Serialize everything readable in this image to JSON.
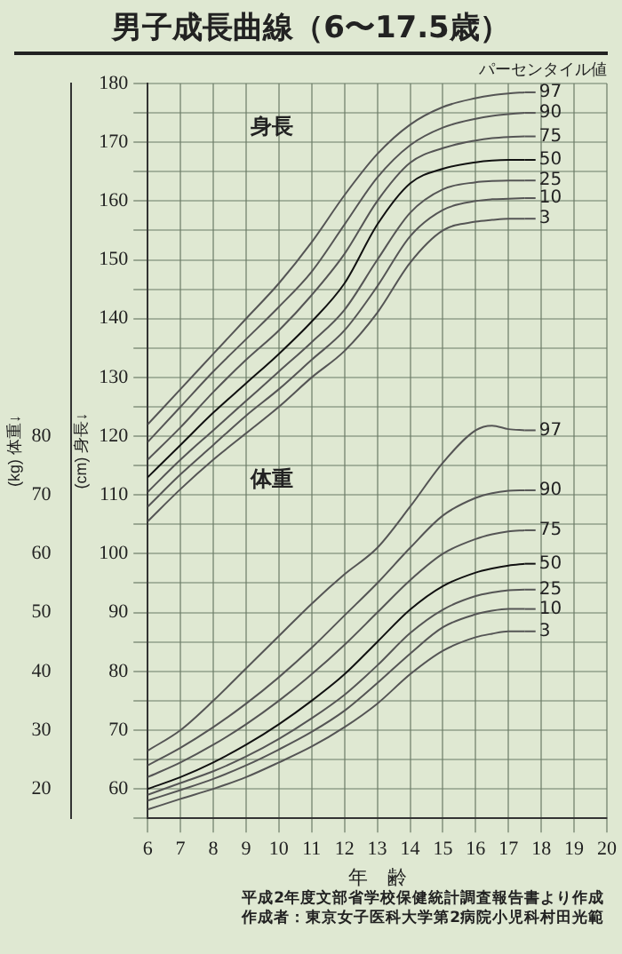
{
  "chart_data": {
    "type": "line",
    "title": "男子成長曲線（6〜17.5歳）",
    "xlabel": "年　齢",
    "ylabel": "(cm) 身長↓",
    "y2label": "(kg) 体重↓",
    "legend_title": "パーセンタイル値",
    "x": [
      6,
      7,
      8,
      9,
      10,
      11,
      12,
      13,
      14,
      15,
      16,
      16.5,
      17,
      17.5
    ],
    "xlim": [
      6,
      20
    ],
    "xticks": [
      6,
      7,
      8,
      9,
      10,
      11,
      12,
      13,
      14,
      15,
      16,
      17,
      18,
      19,
      20
    ],
    "ylim": [
      55,
      180
    ],
    "yticks": [
      {
        "value": 55,
        "label": null
      },
      60,
      {
        "value": 65,
        "label": null
      },
      70,
      {
        "value": 75,
        "label": null
      },
      80,
      {
        "value": 85,
        "label": null
      },
      90,
      {
        "value": 95,
        "label": null
      },
      100,
      {
        "value": 105,
        "label": null
      },
      110,
      {
        "value": 115,
        "label": null
      },
      120,
      {
        "value": 125,
        "label": null
      },
      130,
      {
        "value": 135,
        "label": null
      },
      140,
      {
        "value": 145,
        "label": null
      },
      150,
      {
        "value": 155,
        "label": null
      },
      160,
      {
        "value": 165,
        "label": null
      },
      170,
      {
        "value": 175,
        "label": null
      },
      180
    ],
    "y2lim": [
      15,
      140
    ],
    "y2ticks": [
      20,
      30,
      40,
      50,
      60,
      70,
      80
    ],
    "grid": true,
    "legend": "right",
    "marker": "none",
    "line_style": "solid",
    "series": [
      {
        "name": "97",
        "color": "#555555",
        "values": [
          122,
          128,
          134,
          140,
          146,
          153,
          161,
          168,
          173,
          176,
          177.5,
          178,
          178.3,
          178.5
        ]
      },
      {
        "name": "90",
        "color": "#555555",
        "values": [
          119,
          125,
          131,
          136.5,
          142,
          148,
          156,
          164,
          169.5,
          172.5,
          174,
          174.5,
          174.8,
          175
        ]
      },
      {
        "name": "75",
        "color": "#555555",
        "values": [
          116,
          121.5,
          127.5,
          133,
          138,
          144,
          151,
          160,
          166.5,
          169,
          170.3,
          170.7,
          170.9,
          171
        ]
      },
      {
        "name": "50",
        "color": "#111111",
        "values": [
          113,
          118.5,
          124,
          129,
          134,
          139.5,
          146,
          156,
          163,
          165.5,
          166.6,
          166.9,
          167,
          167
        ]
      },
      {
        "name": "25",
        "color": "#555555",
        "values": [
          110.5,
          116,
          121,
          126,
          131,
          136,
          141.5,
          150,
          158,
          162,
          163.2,
          163.4,
          163.5,
          163.5
        ]
      },
      {
        "name": "10",
        "color": "#555555",
        "values": [
          108,
          113.5,
          118.5,
          123.5,
          128,
          133,
          138,
          145.5,
          154,
          158.5,
          160,
          160.3,
          160.4,
          160.5
        ]
      },
      {
        "name": "3",
        "color": "#555555",
        "values": [
          105.5,
          111,
          116,
          120.5,
          125,
          130,
          134.5,
          141,
          149.5,
          155,
          156.5,
          156.8,
          157,
          157
        ]
      },
      {
        "name": "97",
        "color": "#555555",
        "axis": "y2",
        "values": [
          26.5,
          30,
          35,
          40.5,
          46,
          51.5,
          56.5,
          61,
          68,
          75.5,
          81,
          81.8,
          81.2,
          81
        ]
      },
      {
        "name": "90",
        "color": "#555555",
        "axis": "y2",
        "values": [
          24,
          27,
          30.5,
          34.5,
          39,
          44,
          49.5,
          55,
          61,
          66.5,
          69.5,
          70.3,
          70.7,
          70.8
        ]
      },
      {
        "name": "75",
        "color": "#555555",
        "axis": "y2",
        "values": [
          22,
          24.5,
          27.5,
          31,
          35,
          39.5,
          44.5,
          50,
          55.5,
          60,
          62.5,
          63.3,
          63.8,
          64
        ]
      },
      {
        "name": "50",
        "color": "#111111",
        "axis": "y2",
        "values": [
          20,
          22,
          24.5,
          27.5,
          31,
          35,
          39.5,
          45,
          50.5,
          54.5,
          56.8,
          57.5,
          58,
          58.3
        ]
      },
      {
        "name": "25",
        "color": "#555555",
        "axis": "y2",
        "values": [
          19,
          21,
          23,
          25.5,
          28.5,
          32,
          36,
          41,
          46.5,
          50.5,
          52.8,
          53.4,
          53.8,
          53.9
        ]
      },
      {
        "name": "10",
        "color": "#555555",
        "axis": "y2",
        "values": [
          18,
          19.8,
          21.7,
          24,
          26.7,
          29.7,
          33.3,
          38,
          43,
          47.5,
          49.7,
          50.3,
          50.6,
          50.6
        ]
      },
      {
        "name": "3",
        "color": "#555555",
        "axis": "y2",
        "values": [
          16.5,
          18.3,
          20,
          22,
          24.5,
          27.2,
          30.5,
          34.5,
          39.5,
          43.5,
          45.8,
          46.4,
          46.8,
          46.8
        ]
      }
    ],
    "annotations": [
      "身長",
      "体重",
      "平成2年度文部省学校保健統計調査報告書より作成",
      "作成者：東京女子医科大学第2病院小児科村田光範"
    ]
  }
}
